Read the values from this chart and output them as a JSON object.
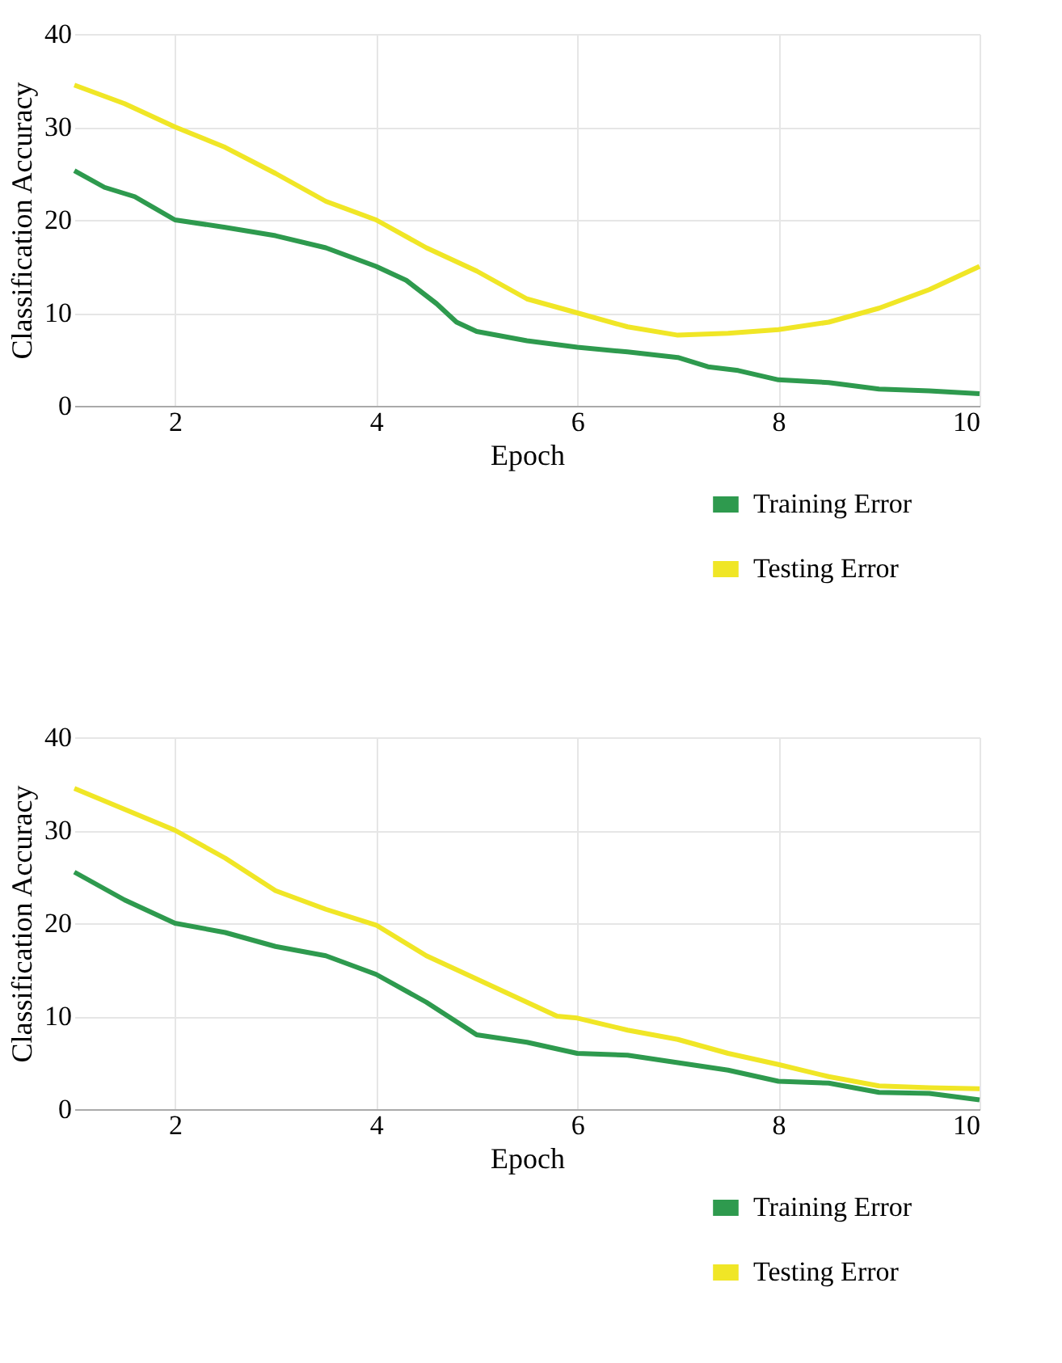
{
  "chart_data": [
    {
      "type": "line",
      "xlabel": "Epoch",
      "ylabel": "Classification Accuracy",
      "xlim": [
        1,
        10
      ],
      "xticks": [
        2,
        4,
        6,
        8,
        10
      ],
      "ylim": [
        0,
        40
      ],
      "yticks": [
        0,
        10,
        20,
        30,
        40
      ],
      "grid": true,
      "legend": "bottom right",
      "line_style": "solid",
      "marker": "none",
      "series": [
        {
          "name": "Training Error",
          "color": "#2e9a4e",
          "x": [
            1,
            1.3,
            1.6,
            2,
            2.5,
            3,
            3.5,
            4,
            4.3,
            4.6,
            4.8,
            5,
            5.5,
            6,
            6.5,
            7,
            7.3,
            7.6,
            8,
            8.5,
            9,
            9.5,
            10
          ],
          "values": [
            25.3,
            23.5,
            22.5,
            20,
            19.2,
            18.3,
            17,
            15,
            13.5,
            11,
            9,
            8,
            7,
            6.3,
            5.8,
            5.2,
            4.2,
            3.8,
            2.8,
            2.5,
            1.8,
            1.6,
            1.3
          ]
        },
        {
          "name": "Testing Error",
          "color": "#f0e626",
          "x": [
            1,
            1.5,
            2,
            2.5,
            3,
            3.5,
            4,
            4.5,
            5,
            5.5,
            6,
            6.5,
            7,
            7.5,
            8,
            8.5,
            9,
            9.5,
            10
          ],
          "values": [
            34.5,
            32.5,
            30,
            27.8,
            25,
            22,
            20,
            17,
            14.5,
            11.5,
            10,
            8.5,
            7.6,
            7.8,
            8.2,
            9,
            10.5,
            12.5,
            15
          ]
        }
      ]
    },
    {
      "type": "line",
      "xlabel": "Epoch",
      "ylabel": "Classification Accuracy",
      "xlim": [
        1,
        10
      ],
      "xticks": [
        2,
        4,
        6,
        8,
        10
      ],
      "ylim": [
        0,
        40
      ],
      "yticks": [
        0,
        10,
        20,
        30,
        40
      ],
      "grid": true,
      "legend": "bottom right",
      "line_style": "solid",
      "marker": "none",
      "series": [
        {
          "name": "Training Error",
          "color": "#2e9a4e",
          "x": [
            1,
            1.5,
            2,
            2.5,
            3,
            3.5,
            4,
            4.5,
            5,
            5.5,
            6,
            6.5,
            7,
            7.5,
            8,
            8.5,
            9,
            9.5,
            10
          ],
          "values": [
            25.5,
            22.5,
            20,
            19,
            17.5,
            16.5,
            14.5,
            11.5,
            8,
            7.2,
            6,
            5.8,
            5,
            4.2,
            3,
            2.8,
            1.8,
            1.7,
            1
          ]
        },
        {
          "name": "Testing Error",
          "color": "#f0e626",
          "x": [
            1,
            2,
            2.5,
            3,
            3.5,
            4,
            4.5,
            5,
            5.5,
            5.8,
            6,
            6.5,
            7,
            7.5,
            8,
            8.5,
            9,
            9.5,
            10
          ],
          "values": [
            34.5,
            30,
            27,
            23.5,
            21.5,
            19.8,
            16.5,
            14,
            11.5,
            10,
            9.8,
            8.5,
            7.5,
            6,
            4.8,
            3.5,
            2.5,
            2.3,
            2.2
          ]
        }
      ]
    }
  ]
}
